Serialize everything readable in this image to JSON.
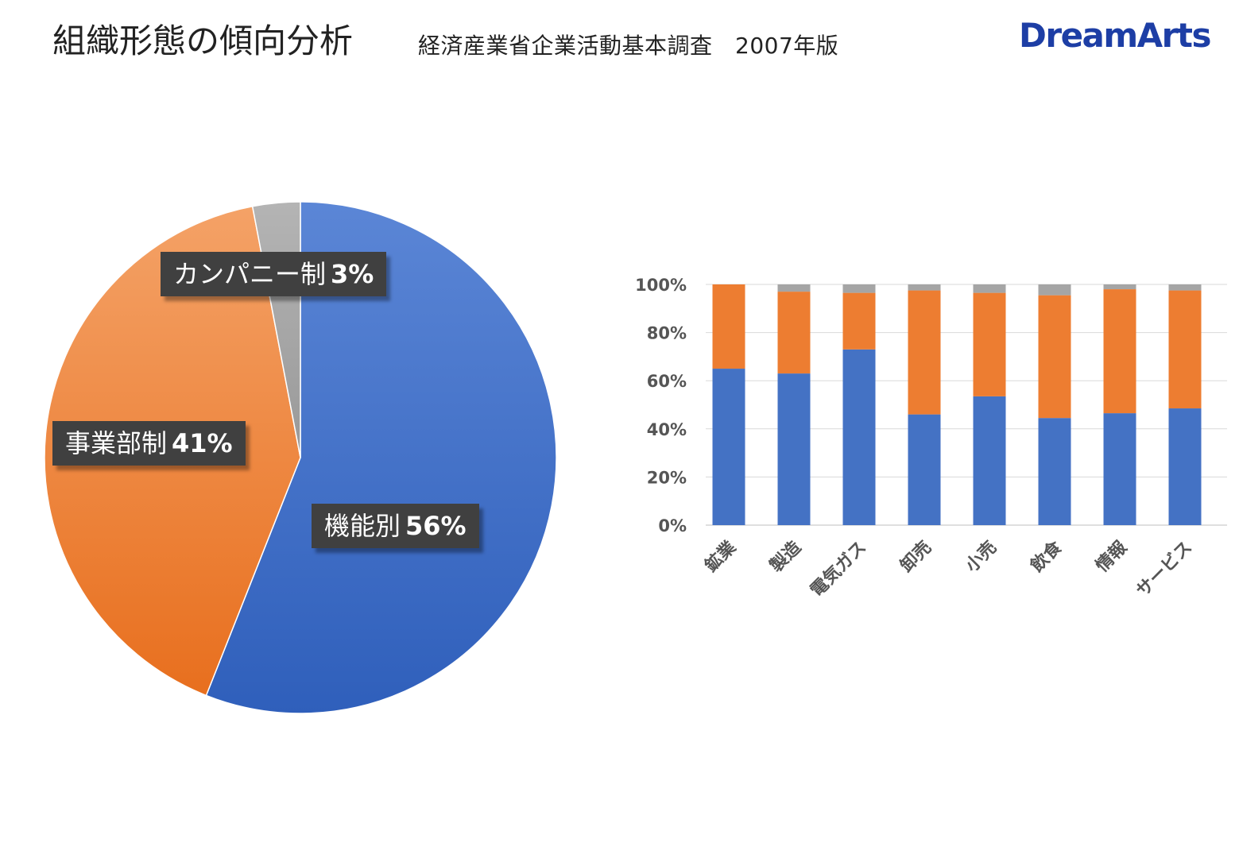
{
  "header": {
    "title": "組織形態の傾向分析",
    "subtitle": "経済産業省企業活動基本調査　2007年版",
    "logo_text": "DreamArts"
  },
  "colors": {
    "blue": "#4472c4",
    "orange": "#ed7d31",
    "gray": "#a5a5a5",
    "label_bg": "#404040",
    "logo": "#1d3ea5"
  },
  "chart_data": [
    {
      "type": "pie",
      "slices": [
        {
          "name": "機能別",
          "value": 56,
          "label": "56%",
          "color": "#4472c4"
        },
        {
          "name": "事業部制",
          "value": 41,
          "label": "41%",
          "color": "#ed7d31"
        },
        {
          "name": "カンパニー制",
          "value": 3,
          "label": "3%",
          "color": "#a5a5a5"
        }
      ]
    },
    {
      "type": "bar",
      "stacked": true,
      "categories": [
        "鉱業",
        "製造",
        "電気ガス",
        "卸売",
        "小売",
        "飲食",
        "情報",
        "サービス"
      ],
      "series": [
        {
          "name": "機能別",
          "color": "#4472c4",
          "values": [
            65,
            63,
            73,
            46,
            53.5,
            44.5,
            46.5,
            48.5
          ]
        },
        {
          "name": "事業部制",
          "color": "#ed7d31",
          "values": [
            35,
            34,
            23.5,
            51.5,
            43,
            51,
            51.5,
            49
          ]
        },
        {
          "name": "カンパニー制",
          "color": "#a5a5a5",
          "values": [
            0,
            3,
            3.5,
            2.5,
            3.5,
            4.5,
            2,
            2.5
          ]
        }
      ],
      "yticks": [
        "0%",
        "20%",
        "40%",
        "60%",
        "80%",
        "100%"
      ],
      "ylim": [
        0,
        100
      ],
      "grid": true
    }
  ]
}
